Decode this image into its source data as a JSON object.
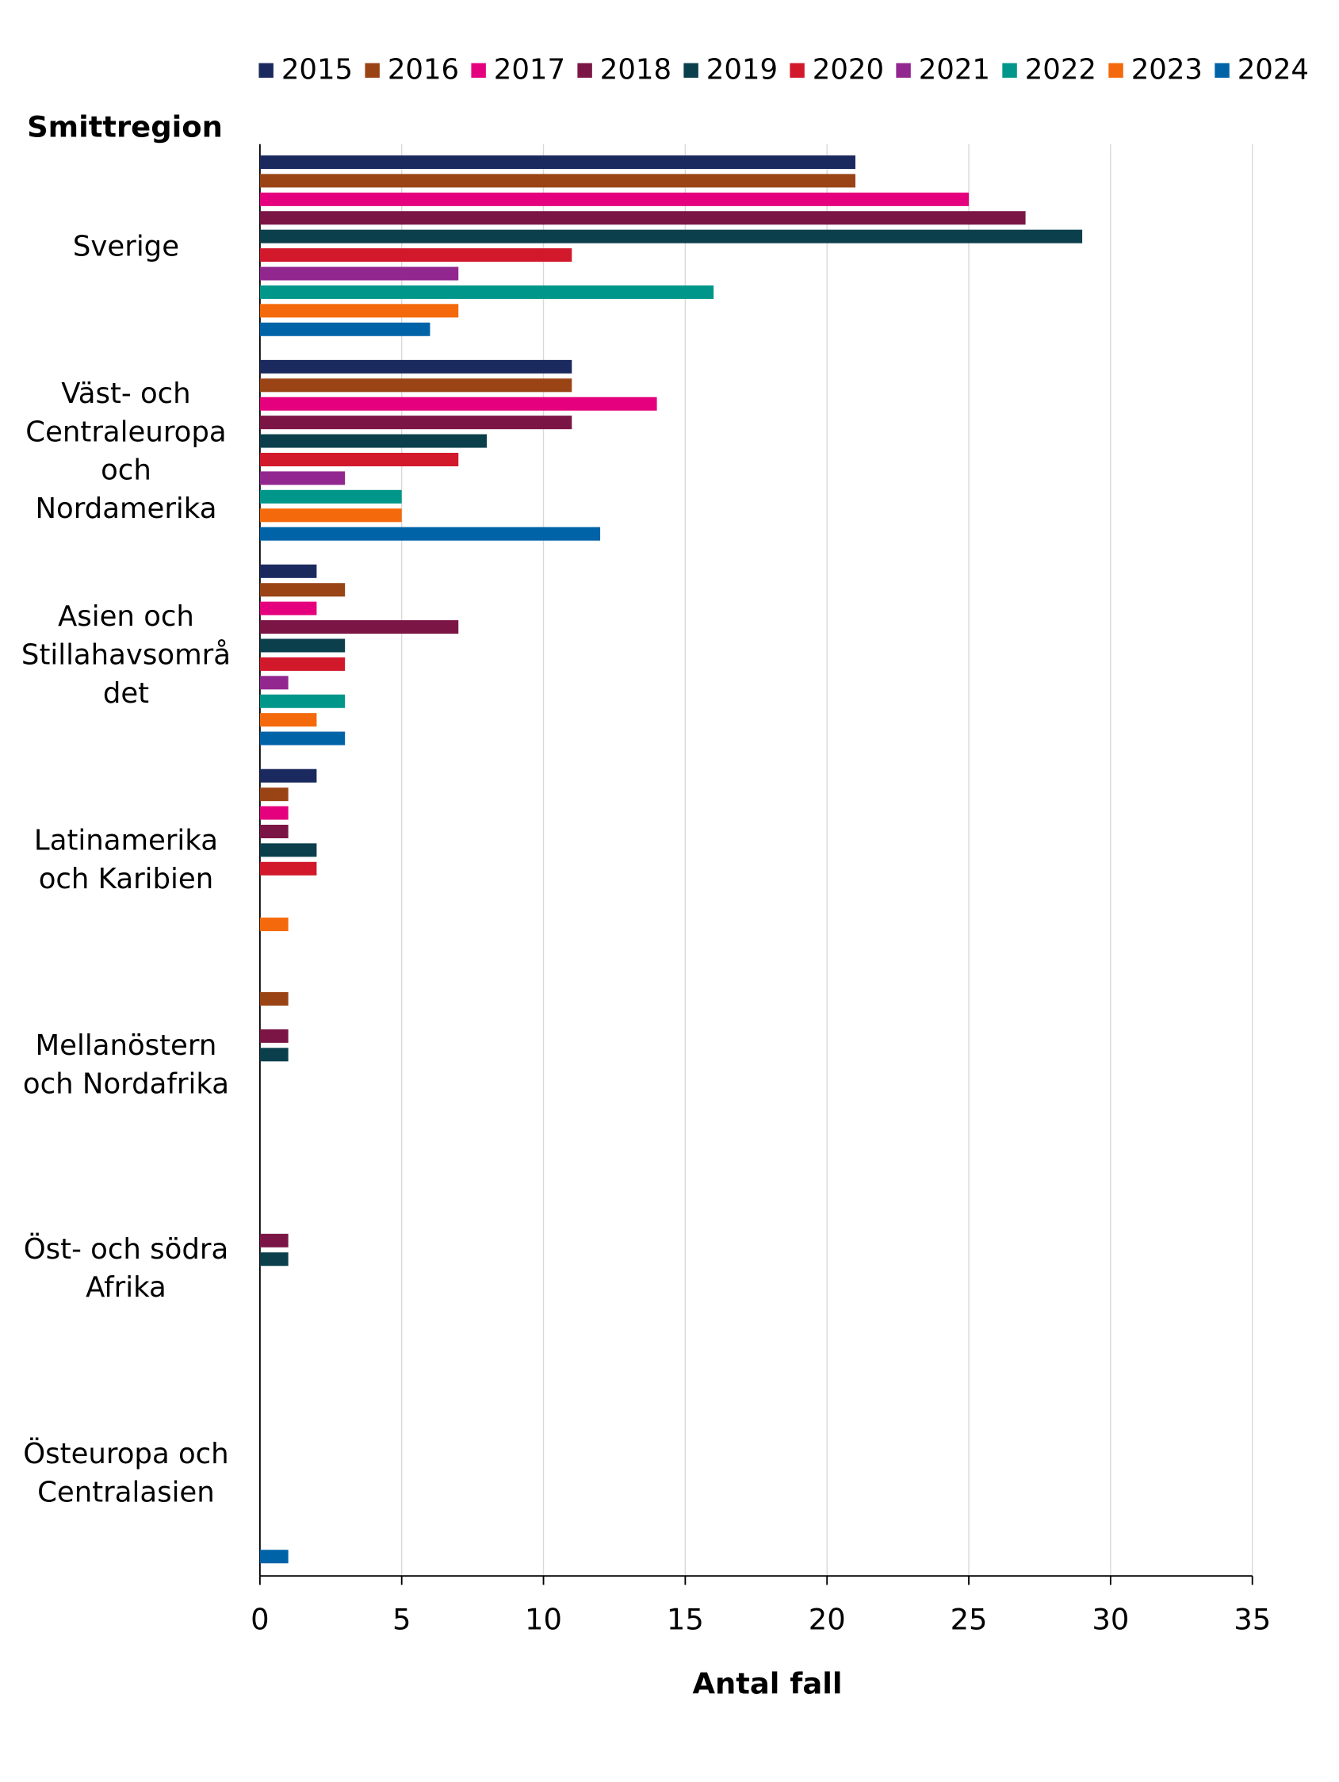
{
  "chart_data": {
    "type": "barh",
    "y_axis_title": "Smittregion",
    "x_axis_title": "Antal fall",
    "categories": [
      "Sverige",
      "Väst- och Centraleuropa och Nordamerika",
      "Asien och Stillahavsområdet",
      "Latinamerika och Karibien",
      "Mellanöstern och Nordafrika",
      "Öst- och södra Afrika",
      "Östeuropa och Centralasien"
    ],
    "series": [
      {
        "name": "2015",
        "color": "#1b2a5e",
        "values": [
          21,
          11,
          2,
          2,
          0,
          0,
          0
        ]
      },
      {
        "name": "2016",
        "color": "#9a4416",
        "values": [
          21,
          11,
          3,
          1,
          1,
          0,
          0
        ]
      },
      {
        "name": "2017",
        "color": "#e5007d",
        "values": [
          25,
          14,
          2,
          1,
          0,
          0,
          0
        ]
      },
      {
        "name": "2018",
        "color": "#7b1545",
        "values": [
          27,
          11,
          7,
          1,
          1,
          1,
          0
        ]
      },
      {
        "name": "2019",
        "color": "#0b3f4c",
        "values": [
          29,
          8,
          3,
          2,
          1,
          1,
          0
        ]
      },
      {
        "name": "2020",
        "color": "#d2192c",
        "values": [
          11,
          7,
          3,
          2,
          0,
          0,
          0
        ]
      },
      {
        "name": "2021",
        "color": "#92278f",
        "values": [
          7,
          3,
          1,
          0,
          0,
          0,
          0
        ]
      },
      {
        "name": "2022",
        "color": "#00978a",
        "values": [
          16,
          5,
          3,
          0,
          0,
          0,
          0
        ]
      },
      {
        "name": "2023",
        "color": "#f4690b",
        "values": [
          7,
          5,
          2,
          1,
          0,
          0,
          0
        ]
      },
      {
        "name": "2024",
        "color": "#0063a8",
        "values": [
          6,
          12,
          3,
          0,
          0,
          0,
          1
        ]
      }
    ],
    "xlim": [
      0,
      35
    ],
    "xticks": [
      0,
      5,
      10,
      15,
      20,
      25,
      30,
      35
    ],
    "grid": true,
    "legend": "top"
  }
}
